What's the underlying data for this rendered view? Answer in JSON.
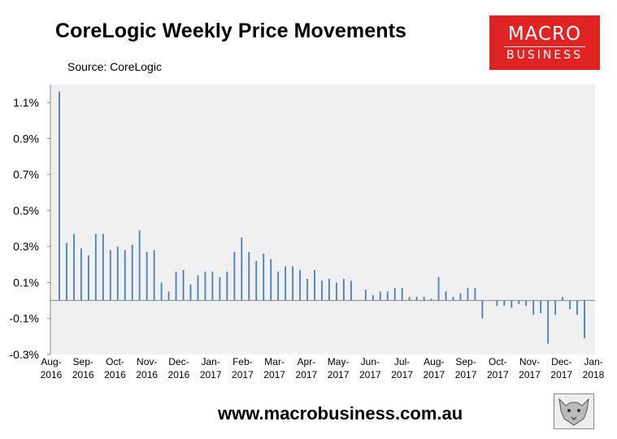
{
  "header": {
    "title": "CoreLogic Weekly Price Movements",
    "source": "Source: CoreLogic"
  },
  "logo": {
    "line1": "MACRO",
    "line2": "BUSINESS",
    "color": "#e02424"
  },
  "footer": {
    "website": "www.macrobusiness.com.au"
  },
  "chart_data": {
    "type": "bar",
    "title": "CoreLogic Weekly Price Movements",
    "xlabel": "",
    "ylabel": "",
    "ylim": [
      -0.3,
      1.2
    ],
    "yticks": [
      1.1,
      0.9,
      0.7,
      0.5,
      0.3,
      0.1,
      -0.1,
      -0.3
    ],
    "ytick_labels": [
      "1.1%",
      "0.9%",
      "0.7%",
      "0.5%",
      "0.3%",
      "0.1%",
      "-0.1%",
      "-0.3%"
    ],
    "x_month_labels": [
      [
        "Aug-",
        "2016"
      ],
      [
        "Sep-",
        "2016"
      ],
      [
        "Oct-",
        "2016"
      ],
      [
        "Nov-",
        "2016"
      ],
      [
        "Dec-",
        "2016"
      ],
      [
        "Jan-",
        "2017"
      ],
      [
        "Feb-",
        "2017"
      ],
      [
        "Mar-",
        "2017"
      ],
      [
        "Apr-",
        "2017"
      ],
      [
        "May-",
        "2017"
      ],
      [
        "Jun-",
        "2017"
      ],
      [
        "Jul-",
        "2017"
      ],
      [
        "Aug-",
        "2017"
      ],
      [
        "Sep-",
        "2017"
      ],
      [
        "Oct-",
        "2017"
      ],
      [
        "Nov-",
        "2017"
      ],
      [
        "Dec-",
        "2017"
      ],
      [
        "Jan-",
        "2018"
      ]
    ],
    "grid": false,
    "bar_color": "#4a7ebb",
    "background": "#f0f0f0",
    "values": [
      1.16,
      0.32,
      0.37,
      0.29,
      0.25,
      0.37,
      0.37,
      0.28,
      0.3,
      0.28,
      0.31,
      0.39,
      0.27,
      0.28,
      0.1,
      0.05,
      0.16,
      0.17,
      0.09,
      0.14,
      0.16,
      0.16,
      0.13,
      0.16,
      0.27,
      0.35,
      0.27,
      0.22,
      0.26,
      0.23,
      0.16,
      0.19,
      0.19,
      0.17,
      0.12,
      0.17,
      0.11,
      0.12,
      0.1,
      0.12,
      0.11,
      0.0,
      0.06,
      0.03,
      0.05,
      0.05,
      0.07,
      0.07,
      0.02,
      0.02,
      0.02,
      0.01,
      0.13,
      0.05,
      0.02,
      0.04,
      0.07,
      0.07,
      -0.1,
      0.0,
      -0.03,
      -0.03,
      -0.04,
      -0.02,
      -0.03,
      -0.08,
      -0.07,
      -0.24,
      -0.08,
      0.02,
      -0.05,
      -0.08,
      -0.21
    ]
  }
}
